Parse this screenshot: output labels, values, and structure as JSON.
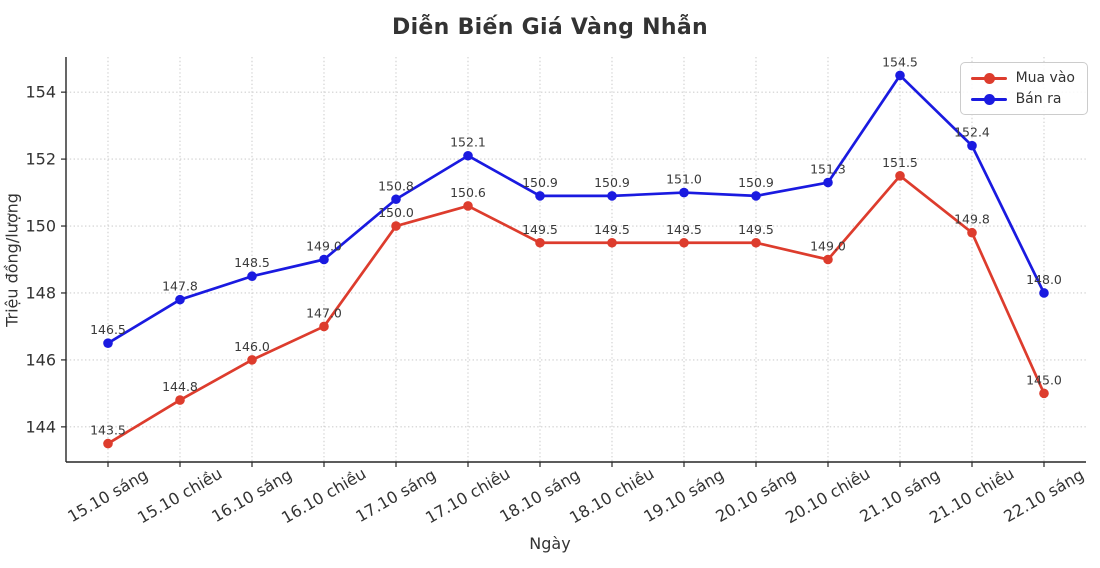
{
  "chart_data": {
    "type": "line",
    "title": "Diễn Biến Giá Vàng Nhẫn",
    "xlabel": "Ngày",
    "ylabel": "Triệu đồng/lượng",
    "categories": [
      "15.10 sáng",
      "15.10 chiều",
      "16.10 sáng",
      "16.10 chiều",
      "17.10 sáng",
      "17.10 chiều",
      "18.10 sáng",
      "18.10 chiều",
      "19.10 sáng",
      "20.10 sáng",
      "20.10 chiều",
      "21.10 sáng",
      "21.10 chiều",
      "22.10 sáng"
    ],
    "series": [
      {
        "name": "Mua vào",
        "color": "#dd3c2d",
        "values": [
          143.5,
          144.8,
          146.0,
          147.0,
          150.0,
          150.6,
          149.5,
          149.5,
          149.5,
          149.5,
          149.0,
          151.5,
          149.8,
          145.0
        ]
      },
      {
        "name": "Bán ra",
        "color": "#1a1ae0",
        "values": [
          146.5,
          147.8,
          148.5,
          149.0,
          150.8,
          152.1,
          150.9,
          150.9,
          151.0,
          150.9,
          151.3,
          154.5,
          152.4,
          148.0
        ]
      }
    ],
    "yticks": [
      144,
      146,
      148,
      150,
      152,
      154
    ],
    "ylim": [
      142.95,
      155.05
    ],
    "grid": "dotted",
    "grid_color": "#cfcfcf",
    "axis_color": "#262626",
    "text_color": "#333333",
    "point_label_color": "#3a3a3a",
    "point_labels": true,
    "legend_position": "top-right",
    "x_tick_rotation_deg": 30
  }
}
